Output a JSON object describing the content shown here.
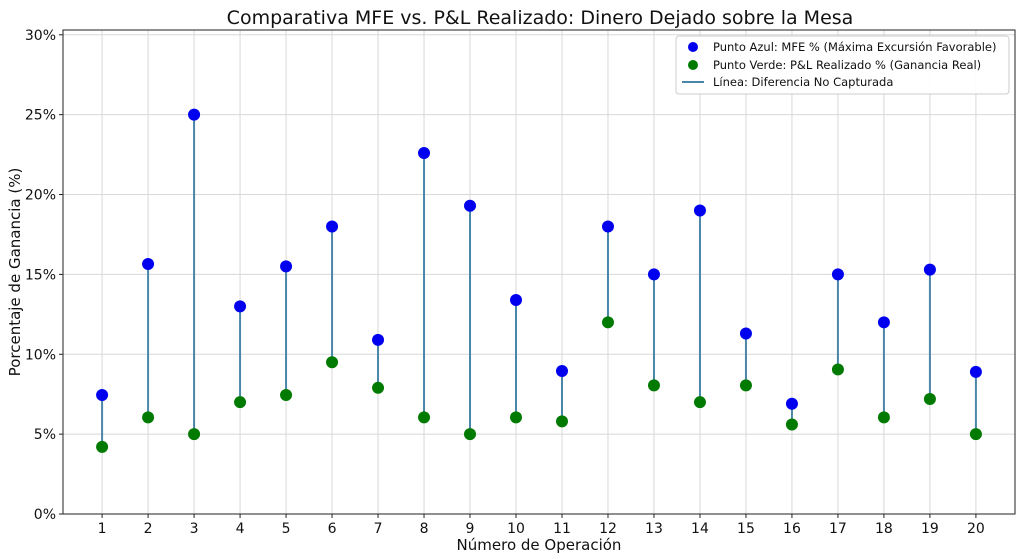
{
  "chart_data": {
    "type": "scatter",
    "title": "Comparativa MFE vs. P&L Realizado: Dinero Dejado sobre la Mesa",
    "xlabel": "Número de Operación",
    "ylabel": "Porcentaje de Ganancia (%)",
    "categories": [
      "1",
      "2",
      "3",
      "4",
      "5",
      "6",
      "7",
      "8",
      "9",
      "10",
      "11",
      "12",
      "13",
      "14",
      "15",
      "16",
      "17",
      "18",
      "19",
      "20"
    ],
    "ylim": [
      0,
      30.3
    ],
    "yticks": [
      0,
      5,
      10,
      15,
      20,
      25,
      30
    ],
    "ytick_labels": [
      "0%",
      "5%",
      "10%",
      "15%",
      "20%",
      "25%",
      "30%"
    ],
    "grid": true,
    "legend_position": "top-right",
    "series": [
      {
        "name": "Punto Azul: MFE % (Máxima Excursión Favorable)",
        "color": "#0000ee",
        "values": [
          7.45,
          15.65,
          25,
          13,
          15.5,
          18,
          10.9,
          22.6,
          19.3,
          13.4,
          8.95,
          18,
          15,
          19,
          11.3,
          6.9,
          15,
          12,
          15.3,
          8.9
        ]
      },
      {
        "name": "Punto Verde: P&L Realizado % (Ganancia Real)",
        "color": "#007a00",
        "values": [
          4.2,
          6.05,
          5,
          7,
          7.45,
          9.5,
          7.9,
          6.05,
          5,
          6.05,
          5.8,
          12,
          8.05,
          7,
          8.05,
          5.6,
          9.05,
          6.05,
          7.2,
          5
        ]
      }
    ],
    "line_legend": "Línea: Diferencia No Capturada",
    "line_color": "#4a86a8"
  }
}
